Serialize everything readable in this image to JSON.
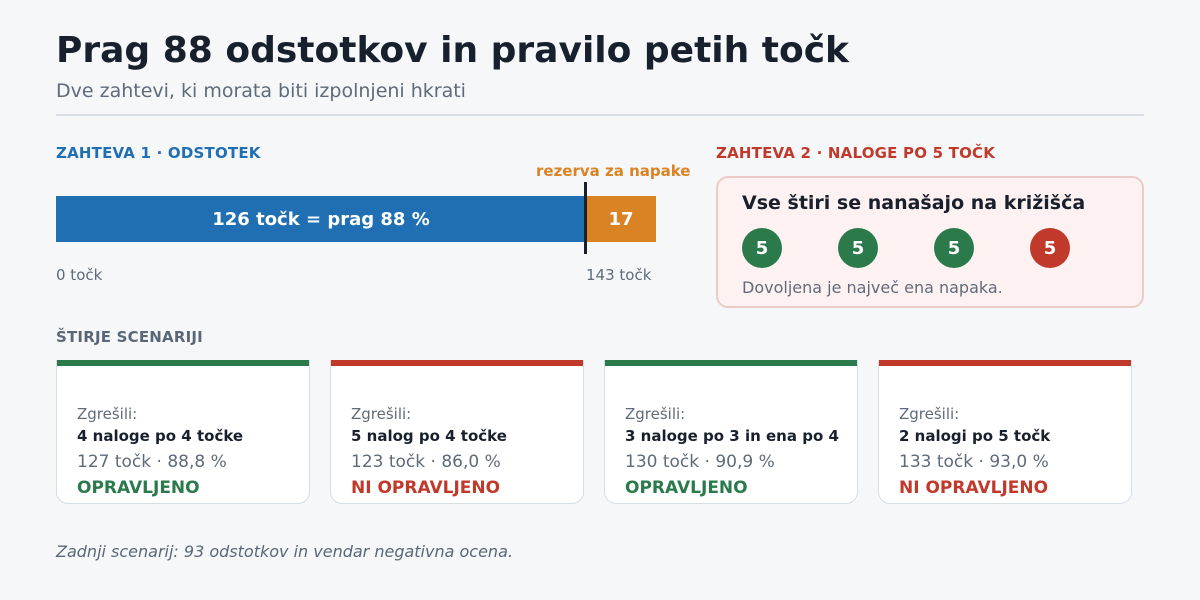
{
  "header": {
    "title": "Prag 88 odstotkov in pravilo petih točk",
    "subtitle": "Dve zahtevi, ki morata biti izpolnjeni hkrati"
  },
  "requirement1": {
    "label": "ZAHTEVA 1  ·  ODSTOTEK",
    "bar_label": "126 točk = prag 88 %",
    "reserve_label": "rezerva za napake",
    "reserve_value": "17",
    "axis_start": "0 točk",
    "axis_end": "143 točk",
    "threshold_points": 126,
    "total_points": 143,
    "colors": {
      "threshold": "#1f6fb2",
      "reserve": "#d98324"
    }
  },
  "requirement2": {
    "label": "ZAHTEVA 2  ·  NALOGE PO 5 TOČK",
    "title": "Vse štiri se nanašajo na križišča",
    "circles": [
      {
        "value": "5",
        "status": "ok"
      },
      {
        "value": "5",
        "status": "ok"
      },
      {
        "value": "5",
        "status": "ok"
      },
      {
        "value": "5",
        "status": "bad"
      }
    ],
    "note": "Dovoljena je največ ena napaka."
  },
  "scenarios": {
    "label": "ŠTIRJE SCENARIJI",
    "items": [
      {
        "missed_label": "Zgrešili:",
        "missed": "4 naloge po 4 točke",
        "stats": "127 točk  ·  88,8 %",
        "verdict": "OPRAVLJENO",
        "status": "ok"
      },
      {
        "missed_label": "Zgrešili:",
        "missed": "5 nalog po 4 točke",
        "stats": "123 točk  ·  86,0 %",
        "verdict": "NI OPRAVLJENO",
        "status": "bad"
      },
      {
        "missed_label": "Zgrešili:",
        "missed": "3 naloge po 3 in ena po 4",
        "stats": "130 točk  ·  90,9 %",
        "verdict": "OPRAVLJENO",
        "status": "ok"
      },
      {
        "missed_label": "Zgrešili:",
        "missed": "2 nalogi po 5 točk",
        "stats": "133 točk  ·  93,0 %",
        "verdict": "NI OPRAVLJENO",
        "status": "bad"
      }
    ]
  },
  "footer": "Zadnji scenarij: 93 odstotkov in vendar negativna ocena.",
  "colors": {
    "ok": "#2a7a4b",
    "bad": "#c0392b"
  }
}
